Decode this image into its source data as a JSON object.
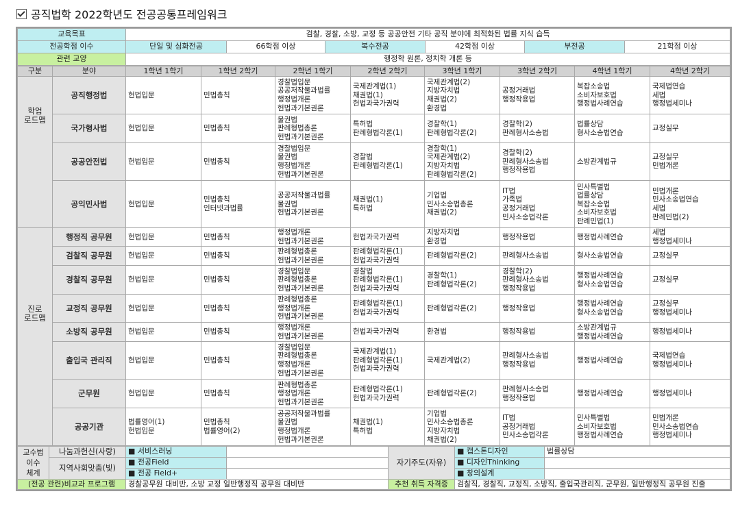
{
  "title": "공직법학 2022학년도 전공공통프레임워크",
  "goal": {
    "label": "교육목표",
    "value": "검찰, 경찰, 소방, 교정 등 공공안전 기타 공직 분야에 최적화된 법률 지식 습득"
  },
  "credits": {
    "label": "전공학점 이수",
    "items": [
      {
        "name": "단일 및 심화전공",
        "value": "66학점 이상"
      },
      {
        "name": "복수전공",
        "value": "42학점 이상"
      },
      {
        "name": "부전공",
        "value": "21학점 이상"
      }
    ]
  },
  "liberal": {
    "label": "관련 교양",
    "value": "행정학 원론, 정치학 개론 등"
  },
  "headers": [
    "구분",
    "분야",
    "1학년 1학기",
    "1학년 2학기",
    "2학년 1학기",
    "2학년 2학기",
    "3학년 1학기",
    "3학년 2학기",
    "4학년 1학기",
    "4학년 2학기"
  ],
  "groups": [
    {
      "label": "학업\n로드맵",
      "rows": [
        {
          "field": "공직행정법",
          "cells": [
            "헌법입문",
            "민법총칙",
            "경찰법입문\n공공저작물과법률\n행정법개론\n헌법과기본권론",
            "국제관계법(1)\n채권법(1)\n헌법과국가권력",
            "국제관계법(2)\n지방자치법\n채권법(2)\n환경법",
            "공정거래법\n행정작용법",
            "복잡소송법\n소비자보호법\n행정법사례연습",
            "국제법연습\n세법\n행정법세미나"
          ]
        },
        {
          "field": "국가형사법",
          "cells": [
            "헌법입문",
            "민법총칙",
            "물권법\n판례형법총론\n헌법과기본권론",
            "특허법\n판례형법각론(1)",
            "경찰학(1)\n판례형법각론(2)",
            "경찰학(2)\n판례형사소송법",
            "법률상담\n형사소송법연습",
            "교정실무"
          ]
        },
        {
          "field": "공공안전법",
          "cells": [
            "헌법입문",
            "민법총칙",
            "경찰법입문\n물권법\n행정법개론\n헌법과기본권론",
            "경찰법\n판례형법각론(1)",
            "경찰학(1)\n국제관계법(2)\n지방자치법\n판례형법각론(2)",
            "경찰학(2)\n판례형사소송법\n행정작용법",
            "소방관계법규",
            "교정실무\n민법개론"
          ]
        },
        {
          "field": "공익민사법",
          "cells": [
            "헌법입문",
            "민법총칙\n인터넷과법률",
            "공공저작물과법률\n물권법\n헌법과기본권론",
            "채권법(1)\n특허법",
            "기업법\n민사소송법총론\n채권법(2)",
            "IT법\n가족법\n공정거래법\n민사소송법각론",
            "민사특별법\n법률상담\n복잡소송법\n소비자보호법\n판례민법(1)",
            "민법개론\n민사소송법연습\n세법\n판례민법(2)"
          ]
        }
      ]
    },
    {
      "label": "진로\n로드맵",
      "rows": [
        {
          "field": "행정직 공무원",
          "cells": [
            "헌법입문",
            "민법총칙",
            "행정법개론\n헌법과기본권론",
            "헌법과국가권력",
            "지방자치법\n환경법",
            "행정작용법",
            "행정법사례연습",
            "세법\n행정법세미나"
          ]
        },
        {
          "field": "검찰직 공무원",
          "cells": [
            "헌법입문",
            "민법총칙",
            "판례형법총론\n헌법과기본권론",
            "판례형법각론(1)\n헌법과국가권력",
            "판례형법각론(2)",
            "판례형사소송법",
            "형사소송법연습",
            "교정실무"
          ]
        },
        {
          "field": "경찰직 공무원",
          "cells": [
            "헌법입문",
            "민법총칙",
            "경찰법입문\n판례형법총론\n헌법과기본권론",
            "경찰법\n판례형법각론(1)\n헌법과국가권력",
            "경찰학(1)\n판례형법각론(2)",
            "경찰학(2)\n판례형사소송법\n행정작용법",
            "행정법사례연습\n형사소송법연습",
            "교정실무"
          ]
        },
        {
          "field": "교정직 공무원",
          "cells": [
            "헌법입문",
            "민법총칙",
            "판례형법총론\n행정법개론\n헌법과기본권론",
            "판례형법각론(1)\n헌법과국가권력",
            "판례형법각론(2)",
            "행정작용법",
            "행정법사례연습\n형사소송법연습",
            "교정실무\n행정법세미나"
          ]
        },
        {
          "field": "소방직 공무원",
          "cells": [
            "헌법입문",
            "민법총칙",
            "행정법개론\n헌법과기본권론",
            "헌법과국가권력",
            "환경법",
            "행정작용법",
            "소방관계법규\n행정법사례연습",
            "행정법세미나"
          ]
        },
        {
          "field": "출입국 관리직",
          "cells": [
            "헌법입문",
            "민법총칙",
            "경찰법입문\n판례형법총론\n행정법개론\n헌법과기본권론",
            "국제관계법(1)\n판례형법각론(1)\n헌법과국가권력",
            "국제관계법(2)",
            "판례형사소송법\n행정작용법",
            "행정법사례연습",
            "국제법연습\n행정법세미나"
          ]
        },
        {
          "field": "군무원",
          "cells": [
            "헌법입문",
            "민법총칙",
            "판례형법총론\n행정법개론\n헌법과기본권론",
            "판례형법각론(1)\n헌법과국가권력",
            "판례형법각론(2)",
            "판례형사소송법\n행정작용법",
            "행정법사례연습",
            "행정법세미나"
          ]
        },
        {
          "field": "공공기관",
          "cells": [
            "법률영어(1)\n헌법입문",
            "민법총칙\n법률영어(2)",
            "공공저작물과법률\n물권법\n행정법개론\n헌법과기본권론",
            "채권법(1)\n특허법",
            "기업법\n민사소송법총론\n지방자치법\n채권법(2)",
            "IT법\n공정거래법\n민사소송법각론",
            "민사특별법\n소비자보호법\n행정법사례연습",
            "민법개론\n민사소송법연습\n행정법세미나"
          ]
        }
      ]
    }
  ],
  "teaching": {
    "label": "교수법\n이수\n체계",
    "sharing": {
      "label": "나눔과헌신(사랑)",
      "items": [
        {
          "name": "서비스러닝",
          "value": ""
        }
      ]
    },
    "regional": {
      "label": "지역사회맞춤(빛)",
      "items": [
        {
          "name": "전공Field",
          "value": ""
        },
        {
          "name": "전공 Field+",
          "value": ""
        }
      ]
    },
    "self": {
      "label": "자기주도(자유)",
      "items": [
        {
          "name": "캡스톤디자인",
          "value": "법률상담"
        },
        {
          "name": "디자인Thinking",
          "value": ""
        },
        {
          "name": "창의설계",
          "value": ""
        }
      ]
    }
  },
  "extracurricular": {
    "label": "(전공 관련)비교과 프로그램",
    "value": "경찰공무원 대비반, 소방 교정 일반행정직 공무원 대비반"
  },
  "certificates": {
    "label": "추천 취득 자격증",
    "value": "검찰직, 경찰직, 교정직, 소방직, 출입국관리직, 군무원, 일반행정직 공무원 진출"
  },
  "colors": {
    "label_cyan": "#bfeef1",
    "label_green": "#c8f0a0",
    "header_gray": "#d2d2d2",
    "side_gray": "#e3e3e3"
  }
}
